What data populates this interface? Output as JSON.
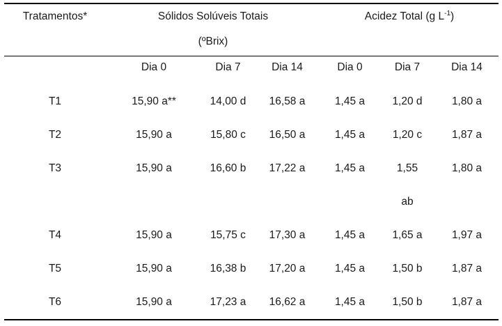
{
  "table": {
    "treatments_header": "Tratamentos*",
    "sst_group_header": "Sólidos Solúveis Totais\n(ºBrix)",
    "acidez_group_header": {
      "prefix": "Acidez Total (g L",
      "sup": "-1",
      "suffix": ")"
    },
    "subheaders": [
      "Dia 0",
      "Dia 7",
      "Dia 14",
      "Dia 0",
      "Dia 7",
      "Dia 14"
    ],
    "rows": [
      {
        "treatment": "T1",
        "values": [
          "15,90 a**",
          "14,00 d",
          "16,58 a",
          "1,45 a",
          "1,20 d",
          "1,80 a"
        ]
      },
      {
        "treatment": "T2",
        "values": [
          "15,90 a",
          "15,80 c",
          "16,50 a",
          "1,45 a",
          "1,20 c",
          "1,87 a"
        ]
      },
      {
        "treatment": "T3",
        "values": [
          "15,90 a",
          "16,60 b",
          "17,22 a",
          "1,45 a",
          "1,55\nab",
          "1,80 a"
        ]
      },
      {
        "treatment": "T4",
        "values": [
          "15,90 a",
          "15,75 c",
          "17,30 a",
          "1,45 a",
          "1,65 a",
          "1,97 a"
        ]
      },
      {
        "treatment": "T5",
        "values": [
          "15,90 a",
          "16,38 b",
          "17,20 a",
          "1,45 a",
          "1,50 b",
          "1,87 a"
        ]
      },
      {
        "treatment": "T6",
        "values": [
          "15,90 a",
          "17,23 a",
          "16,62 a",
          "1,45 a",
          "1,50 b",
          "1,87 a"
        ]
      }
    ]
  }
}
